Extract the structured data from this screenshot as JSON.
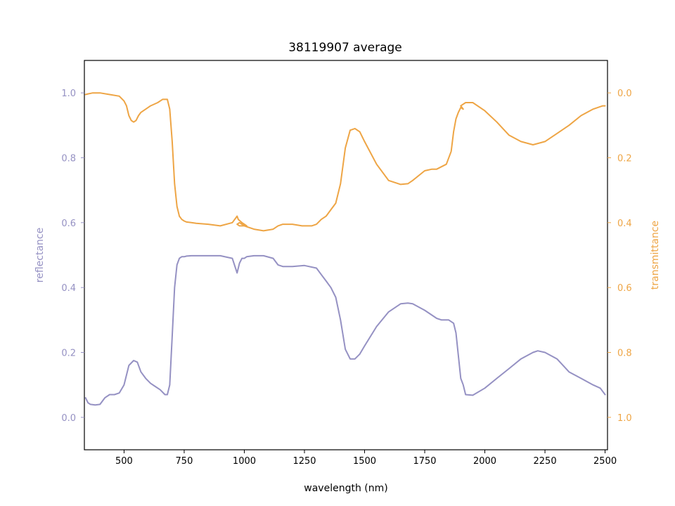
{
  "colors": {
    "reflectance": "#9591c3",
    "transmittance": "#eea545",
    "axis": "#000000"
  },
  "chart_data": {
    "type": "line",
    "title": "38119907 average",
    "xlabel": "wavelength (nm)",
    "ylabel_left": "reflectance",
    "ylabel_right": "transmittance",
    "xlim": [
      335,
      2510
    ],
    "ylim_left": [
      -0.1,
      1.1
    ],
    "ylim_right": [
      1.1,
      -0.1
    ],
    "right_axis_inverted": true,
    "grid": false,
    "legend": "none",
    "x_ticks": [
      500,
      750,
      1000,
      1250,
      1500,
      1750,
      2000,
      2250,
      2500
    ],
    "x_tick_labels": [
      "500",
      "750",
      "1000",
      "1250",
      "1500",
      "1750",
      "2000",
      "2250",
      "2500"
    ],
    "y_left_ticks": [
      0.0,
      0.2,
      0.4,
      0.6,
      0.8,
      1.0
    ],
    "y_left_tick_labels": [
      "0.0",
      "0.2",
      "0.4",
      "0.6",
      "0.8",
      "1.0"
    ],
    "y_right_ticks": [
      0.0,
      0.2,
      0.4,
      0.6,
      0.8,
      1.0
    ],
    "y_right_tick_labels": [
      "0.0",
      "0.2",
      "0.4",
      "0.6",
      "0.8",
      "1.0"
    ],
    "series": [
      {
        "axis": "left",
        "color": "#9591c3",
        "x": [
          340,
          350,
          360,
          380,
          400,
          420,
          440,
          460,
          480,
          500,
          520,
          540,
          555,
          570,
          590,
          610,
          630,
          650,
          670,
          680,
          690,
          700,
          710,
          720,
          730,
          740,
          750,
          760,
          780,
          800,
          850,
          900,
          950,
          970,
          975,
          980,
          990,
          1000,
          1010,
          1040,
          1080,
          1120,
          1140,
          1160,
          1200,
          1250,
          1300,
          1320,
          1340,
          1360,
          1380,
          1400,
          1420,
          1440,
          1460,
          1480,
          1500,
          1550,
          1600,
          1650,
          1680,
          1700,
          1750,
          1800,
          1820,
          1850,
          1870,
          1880,
          1890,
          1900,
          1910,
          1920,
          1950,
          2000,
          2050,
          2100,
          2150,
          2200,
          2220,
          2250,
          2300,
          2350,
          2400,
          2450,
          2480,
          2500
        ],
        "y": [
          0.06,
          0.045,
          0.04,
          0.038,
          0.04,
          0.06,
          0.07,
          0.07,
          0.075,
          0.1,
          0.16,
          0.175,
          0.17,
          0.14,
          0.12,
          0.105,
          0.095,
          0.085,
          0.07,
          0.07,
          0.1,
          0.25,
          0.4,
          0.47,
          0.49,
          0.495,
          0.495,
          0.497,
          0.498,
          0.498,
          0.498,
          0.498,
          0.49,
          0.445,
          0.46,
          0.475,
          0.49,
          0.49,
          0.495,
          0.498,
          0.498,
          0.49,
          0.47,
          0.465,
          0.465,
          0.468,
          0.46,
          0.44,
          0.42,
          0.4,
          0.37,
          0.3,
          0.21,
          0.18,
          0.18,
          0.195,
          0.22,
          0.28,
          0.325,
          0.35,
          0.352,
          0.35,
          0.33,
          0.305,
          0.3,
          0.3,
          0.29,
          0.26,
          0.19,
          0.12,
          0.1,
          0.07,
          0.068,
          0.09,
          0.12,
          0.15,
          0.18,
          0.2,
          0.205,
          0.2,
          0.18,
          0.14,
          0.12,
          0.1,
          0.09,
          0.07
        ]
      },
      {
        "axis": "right",
        "color": "#eea545",
        "x": [
          340,
          350,
          370,
          400,
          440,
          480,
          500,
          510,
          520,
          530,
          540,
          550,
          560,
          570,
          590,
          610,
          640,
          660,
          680,
          690,
          700,
          710,
          720,
          730,
          740,
          750,
          760,
          780,
          800,
          850,
          900,
          950,
          970,
          975,
          990,
          1000,
          1010,
          990,
          980,
          970,
          980,
          1000,
          1040,
          1080,
          1120,
          1140,
          1160,
          1200,
          1240,
          1280,
          1300,
          1320,
          1340,
          1360,
          1380,
          1400,
          1420,
          1440,
          1460,
          1480,
          1500,
          1550,
          1600,
          1650,
          1680,
          1700,
          1750,
          1780,
          1800,
          1840,
          1860,
          1870,
          1880,
          1890,
          1900,
          1910,
          1905,
          1900,
          1920,
          1950,
          2000,
          2050,
          2100,
          2150,
          2200,
          2250,
          2300,
          2350,
          2400,
          2450,
          2490,
          2500
        ],
        "y": [
          0.005,
          0.003,
          0.0,
          0.0,
          0.005,
          0.01,
          0.025,
          0.04,
          0.07,
          0.085,
          0.09,
          0.085,
          0.07,
          0.06,
          0.05,
          0.04,
          0.03,
          0.02,
          0.02,
          0.05,
          0.15,
          0.28,
          0.35,
          0.38,
          0.39,
          0.395,
          0.398,
          0.4,
          0.402,
          0.405,
          0.41,
          0.4,
          0.38,
          0.39,
          0.4,
          0.405,
          0.41,
          0.405,
          0.4,
          0.405,
          0.41,
          0.41,
          0.42,
          0.425,
          0.42,
          0.41,
          0.405,
          0.405,
          0.41,
          0.41,
          0.405,
          0.39,
          0.38,
          0.36,
          0.34,
          0.28,
          0.17,
          0.115,
          0.11,
          0.12,
          0.15,
          0.22,
          0.27,
          0.282,
          0.28,
          0.27,
          0.24,
          0.235,
          0.235,
          0.22,
          0.18,
          0.12,
          0.08,
          0.06,
          0.045,
          0.05,
          0.045,
          0.04,
          0.03,
          0.03,
          0.055,
          0.09,
          0.13,
          0.15,
          0.16,
          0.15,
          0.125,
          0.1,
          0.07,
          0.05,
          0.04,
          0.04
        ]
      }
    ]
  }
}
